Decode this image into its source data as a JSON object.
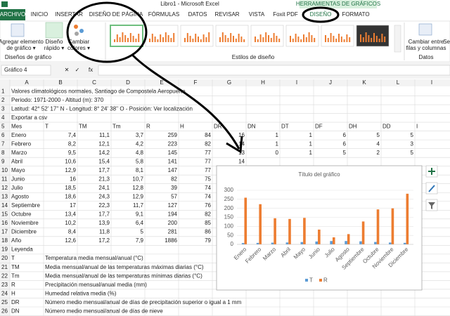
{
  "window": {
    "title": "Libro1 - Microsoft Excel",
    "context_tab": "HERRAMIENTAS DE GRÁFICOS"
  },
  "ribbon": {
    "tabs": [
      "ARCHIVO",
      "INICIO",
      "INSERTAR",
      "DISEÑO DE PÁGINA",
      "FÓRMULAS",
      "DATOS",
      "REVISAR",
      "VISTA",
      "Foxit PDF",
      "DISEÑO",
      "FORMATO"
    ],
    "buttons": [
      {
        "lines": [
          "Agregar elemento",
          "de gráfico ▾"
        ]
      },
      {
        "lines": [
          "Diseño",
          "rápido ▾"
        ]
      },
      {
        "lines": [
          "Cambiar",
          "colores ▾"
        ]
      },
      {
        "lines": [
          "Cambiar entre",
          "filas y columnas"
        ]
      },
      {
        "lines": [
          "Sel"
        ]
      }
    ],
    "groups": [
      "Diseños de gráfico",
      "Estilos de diseño",
      "Datos"
    ]
  },
  "formula_bar": {
    "name_box": "Gráfico 4",
    "buttons": [
      "✕",
      "✓",
      "fx"
    ]
  },
  "sheet": {
    "columns": [
      "A",
      "B",
      "C",
      "D",
      "E",
      "F",
      "G",
      "H",
      "I",
      "J",
      "K",
      "L",
      "I"
    ],
    "row_numbers": [
      "1",
      "2",
      "3",
      "4",
      "5",
      "6",
      "7",
      "8",
      "9",
      "10",
      "11",
      "12",
      "13",
      "14",
      "15",
      "16",
      "17",
      "18",
      "19",
      "20",
      "21",
      "22",
      "23",
      "24",
      "25",
      "26"
    ],
    "rows": [
      [
        "Valores climatológicos normales, Santiago de Compostela Aeropuerto"
      ],
      [
        "Periodo: 1971-2000 - Altitud (m): 370"
      ],
      [
        "Latitud: 42° 52' 17'' N - Longitud: 8° 24' 38'' O - Posición: Ver localización"
      ],
      [
        "Exportar a csv"
      ],
      [
        "Mes",
        "T",
        "TM",
        "Tm",
        "R",
        "H",
        "DR",
        "DN",
        "DT",
        "DF",
        "DH",
        "DD",
        "I"
      ],
      [
        "Enero",
        "7,4",
        "11,1",
        "3,7",
        "259",
        "84",
        "16",
        "1",
        "1",
        "6",
        "5",
        "5"
      ],
      [
        "Febrero",
        "8,2",
        "12,1",
        "4,2",
        "223",
        "82",
        "14",
        "1",
        "1",
        "6",
        "4",
        "3"
      ],
      [
        "Marzo",
        "9,5",
        "14,2",
        "4,8",
        "145",
        "77",
        "13",
        "0",
        "1",
        "5",
        "2",
        "5"
      ],
      [
        "Abril",
        "10,6",
        "15,4",
        "5,8",
        "141",
        "77",
        "14"
      ],
      [
        "Mayo",
        "12,9",
        "17,7",
        "8,1",
        "147",
        "77"
      ],
      [
        "Junio",
        "16",
        "21,3",
        "10,7",
        "82",
        "75"
      ],
      [
        "Julio",
        "18,5",
        "24,1",
        "12,8",
        "39",
        "74"
      ],
      [
        "Agosto",
        "18,6",
        "24,3",
        "12,9",
        "57",
        "74"
      ],
      [
        "Septiembre",
        "17",
        "22,3",
        "11,7",
        "127",
        "76"
      ],
      [
        "Octubre",
        "13,4",
        "17,7",
        "9,1",
        "194",
        "82"
      ],
      [
        "Noviembre",
        "10,2",
        "13,9",
        "6,4",
        "200",
        "85"
      ],
      [
        "Diciembre",
        "8,4",
        "11,8",
        "5",
        "281",
        "86"
      ],
      [
        "Año",
        "12,6",
        "17,2",
        "7,9",
        "1886",
        "79"
      ],
      [
        "Leyenda"
      ],
      [
        "T",
        "Temperatura media mensual/anual (°C)"
      ],
      [
        "TM",
        "Media mensual/anual de las temperaturas máximas diarias (°C)"
      ],
      [
        "Tm",
        "Media mensual/anual de las temperaturas mínimas diarias (°C)"
      ],
      [
        "R",
        "Precipitación mensual/anual media (mm)"
      ],
      [
        "H",
        "Humedad relativa media (%)"
      ],
      [
        "DR",
        "Número medio mensual/anual de días de precipitación superior o igual a 1 mm"
      ],
      [
        "DN",
        "Número medio mensual/anual de días de nieve"
      ]
    ]
  },
  "chart_data": {
    "type": "bar",
    "title": "Título del gráfico",
    "categories": [
      "Enero",
      "Febrero",
      "Marzo",
      "Abril",
      "Mayo",
      "Junio",
      "Julio",
      "Agosto",
      "Septiembre",
      "Octubre",
      "Noviembre",
      "Diciembre"
    ],
    "series": [
      {
        "name": "T",
        "color": "#5b9bd5",
        "values": [
          7.4,
          8.2,
          9.5,
          10.6,
          12.9,
          16,
          18.5,
          18.6,
          17,
          13.4,
          10.2,
          8.4
        ]
      },
      {
        "name": "R",
        "color": "#ed7d31",
        "values": [
          259,
          223,
          145,
          141,
          147,
          82,
          39,
          57,
          127,
          194,
          200,
          281
        ]
      }
    ],
    "ylim": [
      0,
      300
    ],
    "yticks": [
      0,
      50,
      100,
      150,
      200,
      250,
      300
    ],
    "grid": true,
    "legend": "bottom"
  }
}
